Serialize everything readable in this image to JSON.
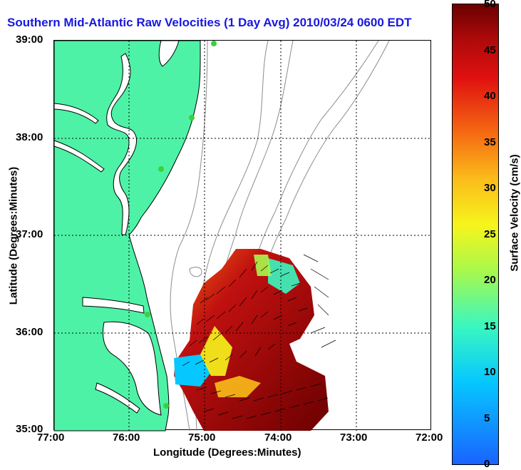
{
  "title": "Southern Mid-Atlantic Raw Velocities (1 Day Avg) 2010/03/24 0600 EDT",
  "axes": {
    "xlabel": "Longitude (Degrees:Minutes)",
    "ylabel": "Latitude (Degrees:Minutes)",
    "x_ticks": [
      "77:00",
      "76:00",
      "75:00",
      "74:00",
      "73:00",
      "72:00"
    ],
    "y_ticks": [
      "39:00",
      "38:00",
      "37:00",
      "36:00",
      "35:00"
    ],
    "grid": "on"
  },
  "colorbar": {
    "label": "Surface Velocity (cm/s)",
    "ticks": [
      "50",
      "45",
      "40",
      "35",
      "30",
      "25",
      "20",
      "15",
      "10",
      "5",
      "0"
    ],
    "range": [
      0,
      50
    ]
  },
  "colors": {
    "land": "#4ef2a6",
    "title": "#1818e0",
    "bathymetry": "#8c8c8c",
    "coast": "#000000",
    "station": "#3ad23a"
  }
}
